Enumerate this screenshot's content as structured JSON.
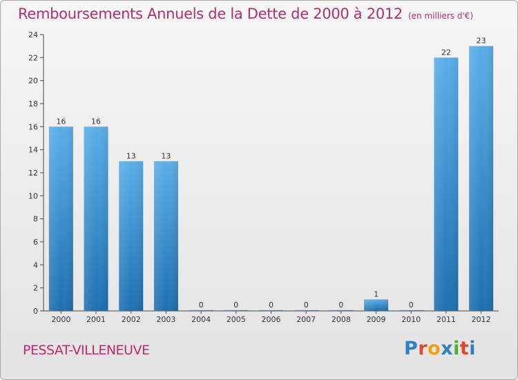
{
  "header": {
    "title": "Remboursements Annuels de la Dette de 2000 à 2012",
    "subtitle": "(en milliers d'€)"
  },
  "footer": {
    "commune": "PESSAT-VILLENEUVE",
    "logo": "Proxiti",
    "logo_colors": [
      "#2f7fc8",
      "#e2482a",
      "#f0a014",
      "#2f7fc8",
      "#59a83a",
      "#e2482a",
      "#2f7fc8"
    ]
  },
  "colors": {
    "bar_top": "#5aaee8",
    "bar_bottom": "#1f6fb0",
    "axis": "#444444",
    "grid": "#cccccc"
  },
  "chart_data": {
    "type": "bar",
    "title": "Remboursements Annuels de la Dette de 2000 à 2012",
    "subtitle": "(en milliers d'€)",
    "categories": [
      "2000",
      "2001",
      "2002",
      "2003",
      "2004",
      "2005",
      "2006",
      "2007",
      "2008",
      "2009",
      "2010",
      "2011",
      "2012"
    ],
    "values": [
      16,
      16,
      13,
      13,
      0,
      0,
      0,
      0,
      0,
      1,
      0,
      22,
      23
    ],
    "ylim": [
      0,
      24
    ],
    "yticks": [
      0,
      2,
      4,
      6,
      8,
      10,
      12,
      14,
      16,
      18,
      20,
      22,
      24
    ],
    "grid": false,
    "data_labels": true
  }
}
